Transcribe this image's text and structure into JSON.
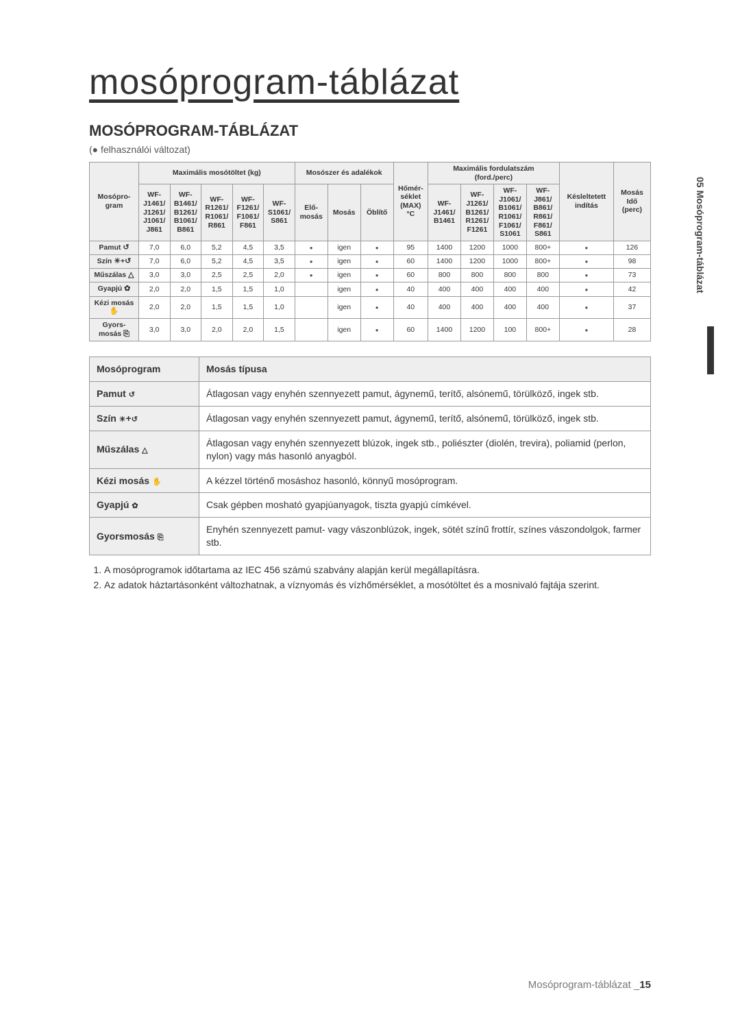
{
  "side_tab": "05 Mosóprogram-táblázat",
  "main_title": "mosóprogram-táblázat",
  "section_title": "MOSÓPROGRAM-TÁBLÁZAT",
  "subtext": "(● felhasználói változat)",
  "footer_text": "Mosóprogram-táblázat _",
  "footer_page": "15",
  "spec_table": {
    "group_headers": {
      "prog": "Mosópro-\ngram",
      "load": "Maximális mosótöltet (kg)",
      "detergent": "Mosószer és adalékok",
      "temp": "Hőmér-\nséklet\n(MAX)\n°C",
      "spin": "Maximális fordulatszám\n(ford./perc)",
      "delay": "Késleltetett\nindítás",
      "time": "Mosás\nIdő\n(perc)"
    },
    "sub_headers": {
      "load": [
        "WF-\nJ1461/\nJ1261/\nJ1061/\nJ861",
        "WF-\nB1461/\nB1261/\nB1061/\nB861",
        "WF-\nR1261/\nR1061/\nR861",
        "WF-\nF1261/\nF1061/\nF861",
        "WF-\nS1061/\nS861"
      ],
      "detergent": [
        "Elő-\nmosás",
        "Mosás",
        "Öblítő"
      ],
      "spin": [
        "WF-\nJ1461/\nB1461",
        "WF-\nJ1261/\nB1261/\nR1261/\nF1261",
        "WF-\nJ1061/\nB1061/\nR1061/\nF1061/\nS1061",
        "WF-\nJ861/\nB861/\nR861/\nF861/\nS861"
      ]
    },
    "rows": [
      {
        "name": "Pamut",
        "icon": "cotton",
        "load": [
          "7,0",
          "6,0",
          "5,2",
          "4,5",
          "3,5"
        ],
        "det": [
          "dot",
          "igen",
          "dot"
        ],
        "temp": "95",
        "spin": [
          "1400",
          "1200",
          "1000",
          "800+"
        ],
        "delay": "dot",
        "time": "126"
      },
      {
        "name": "Szín",
        "icon": "sun-cotton",
        "load": [
          "7,0",
          "6,0",
          "5,2",
          "4,5",
          "3,5"
        ],
        "det": [
          "dot",
          "igen",
          "dot"
        ],
        "temp": "60",
        "spin": [
          "1400",
          "1200",
          "1000",
          "800+"
        ],
        "delay": "dot",
        "time": "98"
      },
      {
        "name": "Műszálas",
        "icon": "tri",
        "load": [
          "3,0",
          "3,0",
          "2,5",
          "2,5",
          "2,0"
        ],
        "det": [
          "dot",
          "igen",
          "dot"
        ],
        "temp": "60",
        "spin": [
          "800",
          "800",
          "800",
          "800"
        ],
        "delay": "dot",
        "time": "73"
      },
      {
        "name": "Gyapjú",
        "icon": "ball",
        "load": [
          "2,0",
          "2,0",
          "1,5",
          "1,5",
          "1,0"
        ],
        "det": [
          "",
          "igen",
          "dot"
        ],
        "temp": "40",
        "spin": [
          "400",
          "400",
          "400",
          "400"
        ],
        "delay": "dot",
        "time": "42"
      },
      {
        "name": "Kézi mosás",
        "icon": "hand",
        "load": [
          "2,0",
          "2,0",
          "1,5",
          "1,5",
          "1,0"
        ],
        "det": [
          "",
          "igen",
          "dot"
        ],
        "temp": "40",
        "spin": [
          "400",
          "400",
          "400",
          "400"
        ],
        "delay": "dot",
        "time": "37"
      },
      {
        "name": "Gyors-\nmosás",
        "icon": "quick",
        "load": [
          "3,0",
          "3,0",
          "2,0",
          "2,0",
          "1,5"
        ],
        "det": [
          "",
          "igen",
          "dot"
        ],
        "temp": "60",
        "spin": [
          "1400",
          "1200",
          "100",
          "800+"
        ],
        "delay": "dot",
        "time": "28"
      }
    ]
  },
  "desc_table": {
    "headers": [
      "Mosóprogram",
      "Mosás típusa"
    ],
    "rows": [
      {
        "label": "Pamut",
        "icon": "cotton",
        "text": "Átlagosan vagy enyhén szennyezett pamut, ágynemű, terítő, alsónemű, törülköző, ingek stb."
      },
      {
        "label": "Szín",
        "icon": "sun-cotton",
        "text": "Átlagosan vagy enyhén szennyezett pamut, ágynemű, terítő, alsónemű, törülköző, ingek stb."
      },
      {
        "label": "Műszálas",
        "icon": "tri",
        "text": "Átlagosan vagy enyhén szennyezett blúzok, ingek stb., poliészter (diolén, trevira), poliamid (perlon, nylon) vagy más hasonló anyagból."
      },
      {
        "label": "Kézi mosás",
        "icon": "hand",
        "text": "A kézzel történő mosáshoz hasonló, könnyű mosóprogram."
      },
      {
        "label": "Gyapjú",
        "icon": "ball",
        "text": "Csak gépben mosható gyapjúanyagok, tiszta gyapjú címkével."
      },
      {
        "label": "Gyorsmosás",
        "icon": "quick",
        "text": "Enyhén szennyezett pamut- vagy vászonblúzok, ingek, sötét színű frottír, színes vászondolgok, farmer stb."
      }
    ]
  },
  "notes": [
    "A mosóprogramok időtartama az IEC 456 számú szabvány alapján kerül megállapításra.",
    "Az adatok háztartásonként változhatnak, a víznyomás és vízhőmérséklet, a mosótöltet és a mosnivaló fajtája szerint."
  ],
  "colwidths": {
    "prog": 60,
    "load": 38,
    "det_pre": 40,
    "det_main": 40,
    "det_rinse": 40,
    "temp": 42,
    "spin": 40,
    "delay": 65,
    "time": 45
  }
}
